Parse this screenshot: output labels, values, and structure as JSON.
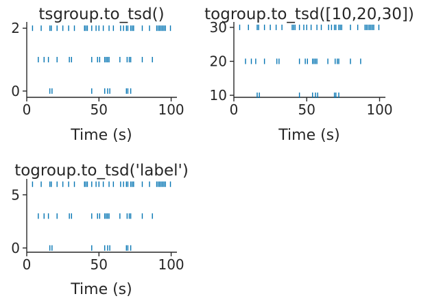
{
  "chart_data": [
    {
      "type": "scatter",
      "marker": "vertical-line",
      "title": "tsgroup.to_tsd()",
      "xlabel": "Time (s)",
      "ylabel": "",
      "xlim": [
        0,
        104
      ],
      "ylim": [
        -0.2,
        2.2
      ],
      "xticks": [
        0,
        50,
        100
      ],
      "yticks": [
        0,
        2
      ],
      "color": "#0173b2",
      "rows": [
        {
          "y": 0,
          "x": [
            16,
            17.5,
            45,
            54,
            56,
            57.5,
            69,
            70,
            72
          ]
        },
        {
          "y": 1,
          "x": [
            8,
            12,
            15,
            21,
            29.5,
            31,
            45,
            49,
            50.5,
            54,
            55,
            56,
            57,
            64.5,
            69.5,
            71,
            72,
            80,
            87
          ]
        },
        {
          "y": 2,
          "x": [
            4,
            10,
            16,
            17,
            21,
            25,
            29,
            33,
            40,
            41,
            42,
            45,
            48,
            50,
            53,
            57,
            60,
            65,
            67,
            69,
            70,
            72,
            73,
            74,
            80,
            85,
            90,
            91,
            92,
            93,
            94,
            95,
            96,
            99.5
          ]
        }
      ]
    },
    {
      "type": "scatter",
      "marker": "vertical-line",
      "title": "togroup.to_tsd([10,20,30])",
      "xlabel": "Time (s)",
      "ylabel": "",
      "xlim": [
        0,
        104
      ],
      "ylim": [
        9.4,
        31.6
      ],
      "xticks": [
        0,
        50,
        100
      ],
      "yticks": [
        10,
        20,
        30
      ],
      "color": "#0173b2",
      "rows": [
        {
          "y": 10,
          "x": [
            16,
            17.5,
            45,
            54,
            56,
            57.5,
            69,
            70,
            72
          ]
        },
        {
          "y": 20,
          "x": [
            8,
            12,
            15,
            21,
            29.5,
            31,
            45,
            49,
            50.5,
            54,
            55,
            56,
            57,
            64.5,
            69.5,
            71,
            72,
            80,
            87
          ]
        },
        {
          "y": 30,
          "x": [
            4,
            10,
            16,
            17,
            21,
            25,
            29,
            33,
            40,
            41,
            42,
            45,
            48,
            50,
            53,
            57,
            60,
            65,
            67,
            69,
            70,
            72,
            73,
            74,
            80,
            85,
            90,
            91,
            92,
            93,
            94,
            95,
            96,
            99.5
          ]
        }
      ]
    },
    {
      "type": "scatter",
      "marker": "vertical-line",
      "title": "togroup.to_tsd('label')",
      "xlabel": "Time (s)",
      "ylabel": "",
      "xlim": [
        0,
        104
      ],
      "ylim": [
        -0.4,
        6.5
      ],
      "xticks": [
        0,
        50,
        100
      ],
      "yticks": [
        0,
        5
      ],
      "color": "#0173b2",
      "rows": [
        {
          "y": 0,
          "x": [
            16,
            17.5,
            45,
            54,
            56,
            57.5,
            69,
            70,
            72
          ]
        },
        {
          "y": 3,
          "x": [
            8,
            12,
            15,
            21,
            29.5,
            31,
            45,
            49,
            50.5,
            54,
            55,
            56,
            57,
            64.5,
            69.5,
            71,
            72,
            80,
            87
          ]
        },
        {
          "y": 6,
          "x": [
            4,
            10,
            16,
            17,
            21,
            25,
            29,
            33,
            40,
            41,
            42,
            45,
            48,
            50,
            53,
            57,
            60,
            65,
            67,
            69,
            70,
            72,
            73,
            74,
            80,
            85,
            90,
            91,
            92,
            93,
            94,
            95,
            96,
            99.5
          ]
        }
      ]
    }
  ]
}
